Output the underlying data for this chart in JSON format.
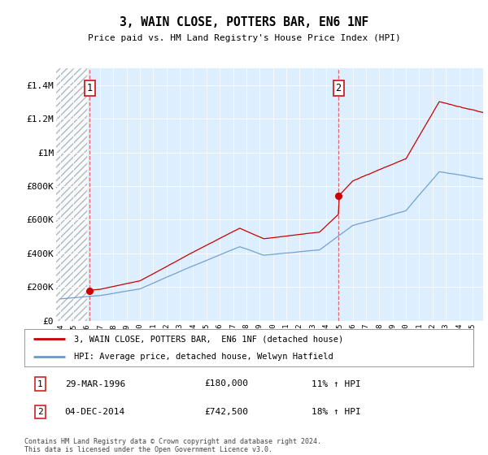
{
  "title": "3, WAIN CLOSE, POTTERS BAR, EN6 1NF",
  "subtitle": "Price paid vs. HM Land Registry's House Price Index (HPI)",
  "legend_line1": "3, WAIN CLOSE, POTTERS BAR,  EN6 1NF (detached house)",
  "legend_line2": "HPI: Average price, detached house, Welwyn Hatfield",
  "annotation1_date": "29-MAR-1996",
  "annotation1_price": "£180,000",
  "annotation1_hpi": "11% ↑ HPI",
  "annotation1_year": 1996.22,
  "annotation1_value": 180000,
  "annotation2_date": "04-DEC-2014",
  "annotation2_price": "£742,500",
  "annotation2_hpi": "18% ↑ HPI",
  "annotation2_year": 2014.92,
  "annotation2_value": 742500,
  "footer": "Contains HM Land Registry data © Crown copyright and database right 2024.\nThis data is licensed under the Open Government Licence v3.0.",
  "price_color": "#cc0000",
  "hpi_color": "#6699cc",
  "background_color": "#ddeeff",
  "hatch_region_end": 1996.0,
  "ylim": [
    0,
    1500000
  ],
  "xlim_start": 1993.7,
  "xlim_end": 2025.8,
  "yticks": [
    0,
    200000,
    400000,
    600000,
    800000,
    1000000,
    1200000,
    1400000
  ],
  "ylabels": [
    "£0",
    "£200K",
    "£400K",
    "£600K",
    "£800K",
    "£1M",
    "£1.2M",
    "£1.4M"
  ]
}
